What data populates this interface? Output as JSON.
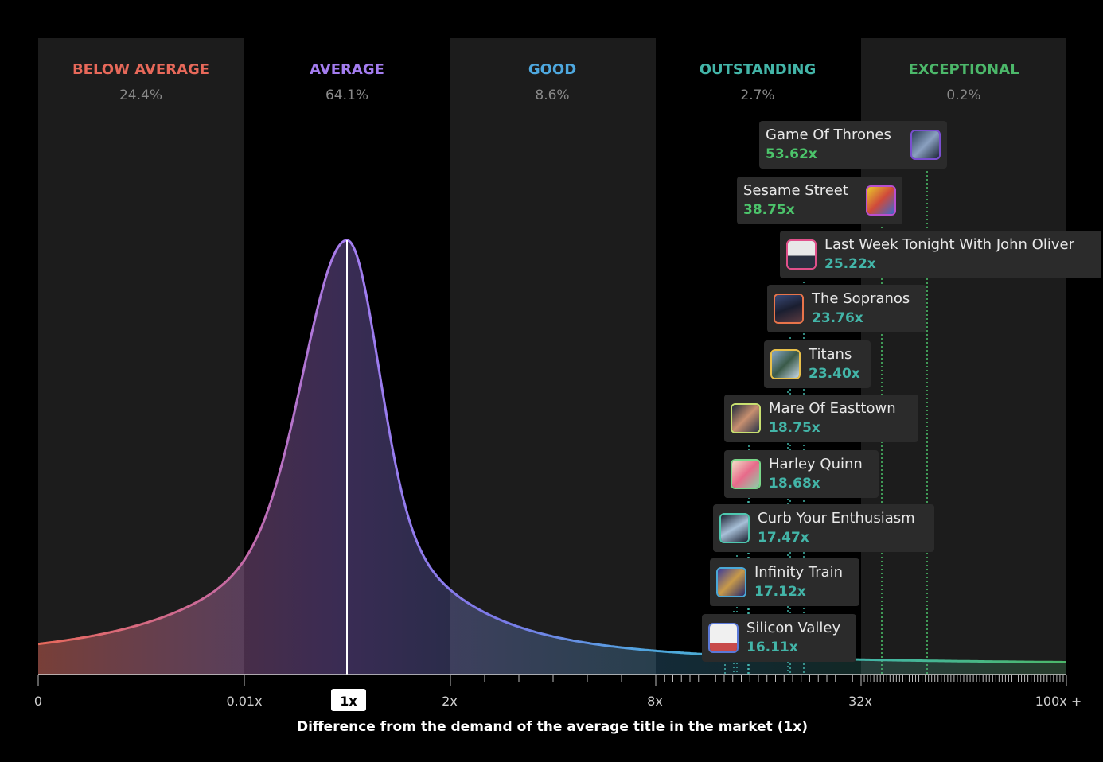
{
  "chart_data": {
    "type": "area",
    "title": "",
    "xlabel": "Difference from the demand of the average title in the market (1x)",
    "ylabel": "",
    "x_ticks": [
      "0",
      "0.01x",
      "1x",
      "2x",
      "8x",
      "32x",
      "100x +"
    ],
    "highlighted_tick": "1x",
    "bands": [
      {
        "name": "BELOW AVERAGE",
        "share": "24.4%",
        "color": "#e8695a"
      },
      {
        "name": "AVERAGE",
        "share": "64.1%",
        "color": "#a47df0"
      },
      {
        "name": "GOOD",
        "share": "8.6%",
        "color": "#4ea8df"
      },
      {
        "name": "OUTSTANDING",
        "share": "2.7%",
        "color": "#43b5a8"
      },
      {
        "name": "EXCEPTIONAL",
        "share": "0.2%",
        "color": "#4cb86a"
      }
    ],
    "titles": [
      {
        "name": "Game Of Thrones",
        "value": 53.62,
        "label": "53.62x",
        "color": "#4cc46b",
        "thumb": "#7a4fd0"
      },
      {
        "name": "Sesame Street",
        "value": 38.75,
        "label": "38.75x",
        "color": "#4cc46b",
        "thumb": "#b84fd0"
      },
      {
        "name": "Last Week Tonight With John Oliver",
        "value": 25.22,
        "label": "25.22x",
        "color": "#43b5a8",
        "thumb": "#e0508a"
      },
      {
        "name": "The Sopranos",
        "value": 23.76,
        "label": "23.76x",
        "color": "#43b5a8",
        "thumb": "#e8744a"
      },
      {
        "name": "Titans",
        "value": 23.4,
        "label": "23.40x",
        "color": "#43b5a8",
        "thumb": "#e8c04a"
      },
      {
        "name": "Mare Of Easttown",
        "value": 18.75,
        "label": "18.75x",
        "color": "#43b5a8",
        "thumb": "#c8e070"
      },
      {
        "name": "Harley Quinn",
        "value": 18.68,
        "label": "18.68x",
        "color": "#43b5a8",
        "thumb": "#7ad88a"
      },
      {
        "name": "Curb Your Enthusiasm",
        "value": 17.47,
        "label": "17.47x",
        "color": "#43b5a8",
        "thumb": "#4ec8b0"
      },
      {
        "name": "Infinity Train",
        "value": 17.12,
        "label": "17.12x",
        "color": "#43b5a8",
        "thumb": "#4aa8d8"
      },
      {
        "name": "Silicon Valley",
        "value": 16.11,
        "label": "16.11x",
        "color": "#43b5a8",
        "thumb": "#5a78d8"
      }
    ]
  }
}
